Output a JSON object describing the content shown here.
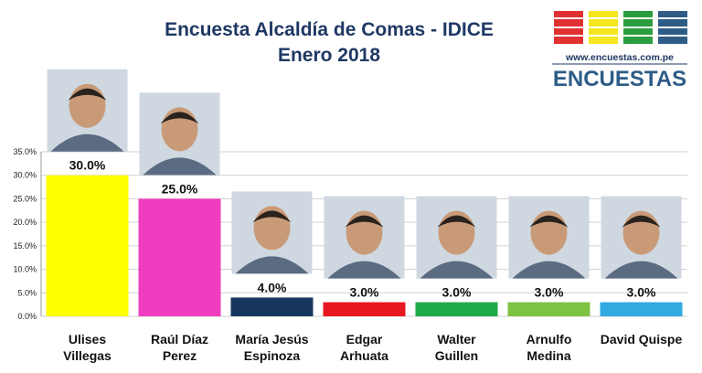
{
  "header": {
    "title_line1": "Encuesta Alcaldía de Comas - IDICE",
    "title_line2": "Enero 2018"
  },
  "logo": {
    "url_text": "www.encuestas.com.pe",
    "brand": "ENCUESTAS",
    "colors": [
      "#e03030",
      "#f5e620",
      "#2a9d3f",
      "#2e5c87"
    ]
  },
  "chart_data": {
    "type": "bar",
    "categories": [
      [
        "Ulises",
        "Villegas"
      ],
      [
        "Raúl Díaz",
        "Perez"
      ],
      [
        "María Jesús",
        "Espinoza"
      ],
      [
        "Edgar",
        "Arhuata"
      ],
      [
        "Walter",
        "Guillen"
      ],
      [
        "Arnulfo",
        "Medina"
      ],
      [
        "David Quispe"
      ]
    ],
    "values": [
      30.0,
      25.0,
      4.0,
      3.0,
      3.0,
      3.0,
      3.0
    ],
    "value_labels": [
      "30.0%",
      "25.0%",
      "4.0%",
      "3.0%",
      "3.0%",
      "3.0%",
      "3.0%"
    ],
    "colors": [
      "#ffff00",
      "#f03cbf",
      "#17375e",
      "#e8161e",
      "#1faa4a",
      "#7dc243",
      "#31a9e1"
    ],
    "ylim": [
      0,
      35
    ],
    "yticks": [
      "0.0%",
      "5.0%",
      "10.0%",
      "15.0%",
      "20.0%",
      "25.0%",
      "30.0%",
      "35.0%"
    ],
    "grid": true,
    "legend": "none",
    "candidate_photos": [
      "portrait",
      "portrait",
      "portrait",
      "portrait",
      "portrait",
      "portrait",
      "portrait"
    ]
  }
}
